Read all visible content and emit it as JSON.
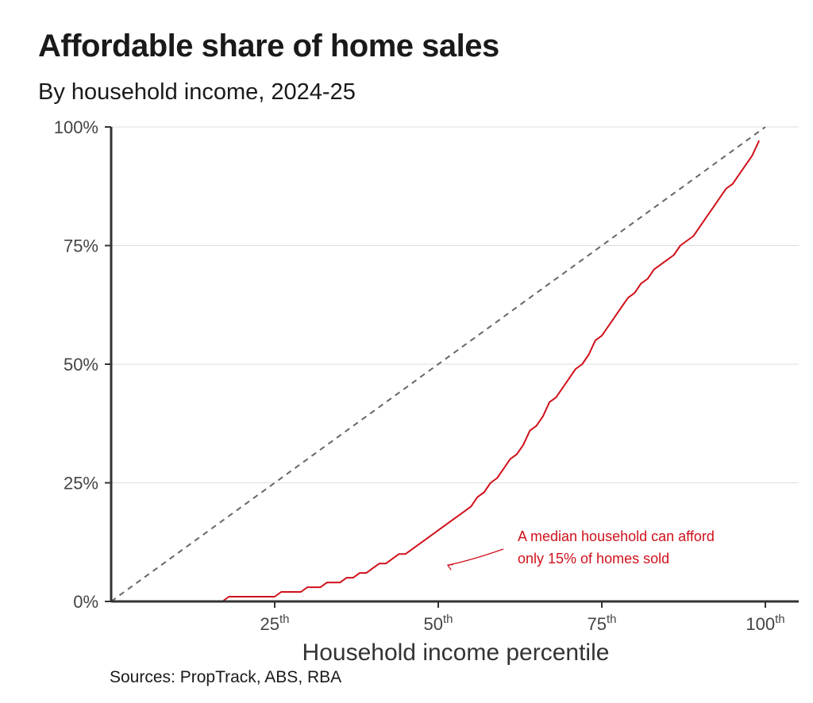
{
  "header": {
    "title": "Affordable share of home sales",
    "subtitle": "By household income, 2024-25"
  },
  "footer": {
    "source": "Sources: PropTrack, ABS, RBA"
  },
  "colors": {
    "series": "#d0111b",
    "reference": "#666666",
    "axis": "#333333",
    "grid": "#dddddd"
  },
  "chart_data": {
    "type": "line",
    "title": "Affordable share of home sales",
    "subtitle": "By household income, 2024-25",
    "xlabel": "Household income percentile",
    "ylabel": "",
    "xlim": [
      0,
      105
    ],
    "ylim": [
      0,
      100
    ],
    "grid": true,
    "y_ticks": [
      {
        "value": 0,
        "label": "0%"
      },
      {
        "value": 25,
        "label": "25%"
      },
      {
        "value": 50,
        "label": "50%"
      },
      {
        "value": 75,
        "label": "75%"
      },
      {
        "value": 100,
        "label": "100%"
      }
    ],
    "x_ticks": [
      {
        "value": 25,
        "label": "25",
        "suffix": "th"
      },
      {
        "value": 50,
        "label": "50",
        "suffix": "th"
      },
      {
        "value": 75,
        "label": "75",
        "suffix": "th"
      },
      {
        "value": 100,
        "label": "100",
        "suffix": "th"
      }
    ],
    "series": [
      {
        "x": [
          17,
          18,
          25,
          26,
          29,
          30,
          32,
          33,
          35,
          36,
          37,
          38,
          39,
          40,
          41,
          42,
          43,
          44,
          45,
          46,
          48,
          50,
          52,
          54,
          55,
          56,
          57,
          58,
          59,
          60,
          61,
          62,
          63,
          64,
          65,
          66,
          67,
          68,
          70,
          71,
          72,
          73,
          74,
          75,
          76,
          77,
          78,
          79,
          80,
          81,
          82,
          83,
          84,
          85,
          86,
          87,
          88,
          89,
          90,
          91,
          92,
          93,
          94,
          95,
          96,
          97,
          98,
          99
        ],
        "y": [
          0,
          1,
          1,
          2,
          2,
          3,
          3,
          4,
          4,
          5,
          5,
          6,
          6,
          7,
          8,
          8,
          9,
          10,
          10,
          11,
          13,
          15,
          17,
          19,
          20,
          22,
          23,
          25,
          26,
          28,
          30,
          31,
          33,
          36,
          37,
          39,
          42,
          43,
          47,
          49,
          50,
          52,
          55,
          56,
          58,
          60,
          62,
          64,
          65,
          67,
          68,
          70,
          71,
          72,
          73,
          75,
          76,
          77,
          79,
          81,
          83,
          85,
          87,
          88,
          90,
          92,
          94,
          97
        ]
      },
      {
        "x": [
          0,
          100
        ],
        "y": [
          0,
          100
        ]
      }
    ],
    "annotations": [
      {
        "lines": [
          "A median household can afford",
          "only 15% of homes sold"
        ],
        "point_x": 50,
        "point_y": 15
      }
    ]
  }
}
